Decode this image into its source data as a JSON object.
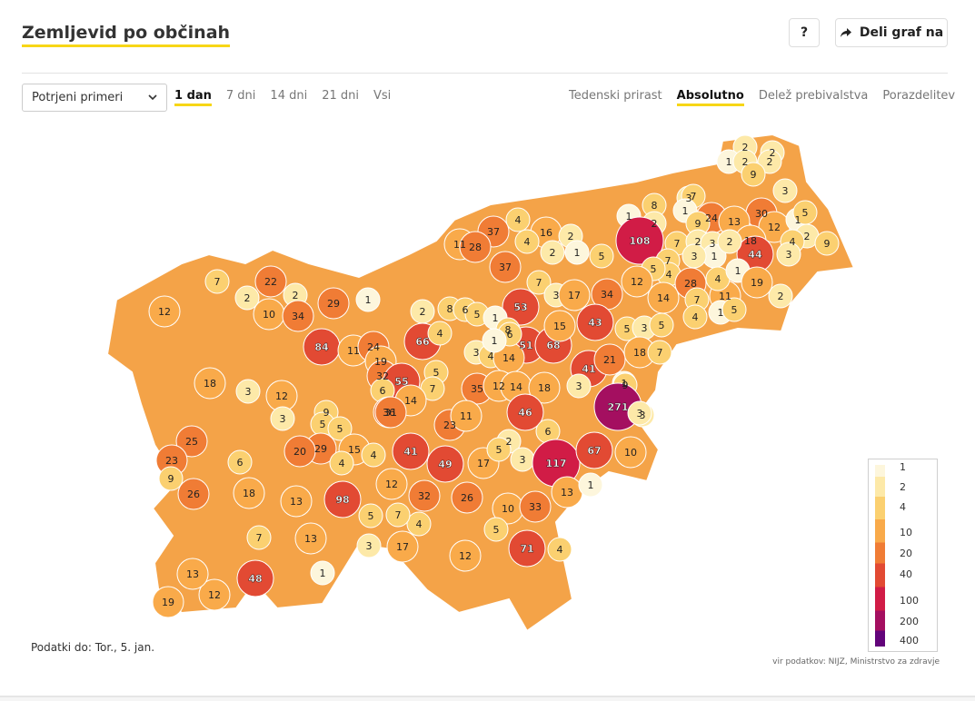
{
  "title": "Zemljevid po občinah",
  "help_label": "?",
  "share_label": "Deli graf na",
  "select_value": "Potrjeni primeri",
  "time_tabs": [
    "1 dan",
    "7 dni",
    "14 dni",
    "21 dni",
    "Vsi"
  ],
  "time_active": 0,
  "mode_tabs": [
    "Tedenski prirast",
    "Absolutno",
    "Delež prebivalstva",
    "Porazdelitev"
  ],
  "mode_active": 1,
  "data_date": "Podatki do: Tor., 5. jan.",
  "source": "vir podatkov: NIJZ, Ministrstvo za zdravje",
  "legend": {
    "ticks": [
      "1",
      "2",
      "4",
      "10",
      "20",
      "40",
      "100",
      "200",
      "400"
    ],
    "colors": [
      "#fdf6dc",
      "#fde9a8",
      "#fbd070",
      "#f9aa4a",
      "#f07c35",
      "#e24a33",
      "#d11c46",
      "#a40f60",
      "#62047a"
    ]
  },
  "map_values": [
    "2",
    "2",
    "1",
    "2",
    "2",
    "9",
    "3",
    "3",
    "8",
    "7",
    "1",
    "2",
    "1",
    "30",
    "24",
    "9",
    "13",
    "12",
    "1",
    "5",
    "2",
    "4",
    "9",
    "108",
    "37",
    "4",
    "16",
    "2",
    "4",
    "11",
    "28",
    "2",
    "1",
    "5",
    "18",
    "44",
    "3",
    "7",
    "2",
    "3",
    "1",
    "2",
    "3",
    "7",
    "4",
    "5",
    "22",
    "7",
    "2",
    "29",
    "1",
    "2",
    "37",
    "53",
    "7",
    "3",
    "17",
    "34",
    "12",
    "28",
    "14",
    "11",
    "7",
    "4",
    "1",
    "19",
    "12",
    "2",
    "10",
    "34",
    "84",
    "11",
    "24",
    "19",
    "8",
    "6",
    "5",
    "1",
    "8",
    "51",
    "68",
    "15",
    "43",
    "5",
    "3",
    "5",
    "18",
    "7",
    "4",
    "1",
    "5",
    "2",
    "66",
    "4",
    "3",
    "4",
    "14",
    "6",
    "1",
    "41",
    "21",
    "3",
    "1",
    "3",
    "18",
    "32",
    "55",
    "6",
    "5",
    "7",
    "14",
    "9",
    "3",
    "12",
    "36",
    "35",
    "12",
    "14",
    "18",
    "3",
    "9",
    "271",
    "31",
    "23",
    "11",
    "46",
    "6",
    "3",
    "25",
    "5",
    "5",
    "15",
    "29",
    "20",
    "4",
    "41",
    "49",
    "17",
    "2",
    "5",
    "3",
    "117",
    "67",
    "10",
    "23",
    "9",
    "6",
    "4",
    "12",
    "26",
    "18",
    "13",
    "1",
    "13",
    "98",
    "26",
    "10",
    "33",
    "32",
    "4",
    "7",
    "5",
    "5",
    "13",
    "7",
    "3",
    "17",
    "12",
    "71",
    "4",
    "19",
    "12",
    "13",
    "48",
    "1"
  ]
}
